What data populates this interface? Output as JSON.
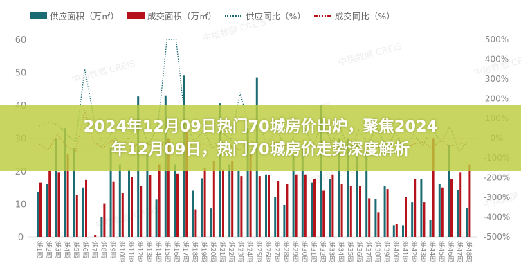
{
  "banner": {
    "line1": "2024年12月09日热门70城房价出炉，聚焦2024",
    "line2": "年12月09日，热门70城房价走势深度解析"
  },
  "watermark": "中指数据 CREIS",
  "colors": {
    "supply": "#1b6b73",
    "deal": "#b5121b",
    "supply_yoy": "#1b6b73",
    "deal_yoy": "#b5121b",
    "banner": "#bccc3e"
  },
  "chart_data": {
    "type": "bar",
    "title": "",
    "legend_position": "top",
    "categories": [
      "第1周",
      "第2周",
      "第3周",
      "第4周",
      "第5周",
      "第6周",
      "第7周",
      "第8周",
      "第9周",
      "第10周",
      "第11周",
      "第12周",
      "第13周",
      "第14周",
      "第15周",
      "第16周",
      "第17周",
      "第18周",
      "第19周",
      "第20周",
      "第21周",
      "第22周",
      "第23周",
      "第24周",
      "第25周",
      "第26周",
      "第27周",
      "第28周",
      "第29周",
      "第30周",
      "第31周",
      "第32周",
      "第33周",
      "第34周",
      "第35周",
      "第36周",
      "第37周",
      "第38周",
      "第39周",
      "第40周",
      "第41周",
      "第42周",
      "第43周",
      "第44周",
      "第45周",
      "第46周",
      "第47周",
      "第48周"
    ],
    "y_left": {
      "ylim": [
        0,
        60
      ],
      "ticks": [
        "0",
        "10",
        "20",
        "30",
        "40",
        "50",
        "60"
      ]
    },
    "y_right": {
      "ylim": [
        -500,
        500
      ],
      "ticks": [
        "-500%",
        "-400%",
        "-300%",
        "-200%",
        "-100%",
        "0%",
        "100%",
        "200%",
        "300%",
        "400%",
        "500%"
      ]
    },
    "series": [
      {
        "name": "供应面积（万㎡）",
        "type": "bar",
        "axis": "left",
        "values": [
          13.7,
          16,
          30,
          33,
          27,
          15,
          0,
          6,
          27,
          22,
          20.5,
          42.7,
          25,
          11.3,
          43,
          22,
          49,
          14,
          17.8,
          8.6,
          40.6,
          22,
          20,
          33,
          48.5,
          19,
          12,
          9.7,
          25,
          27,
          16.5,
          40,
          17.5,
          30,
          30,
          28,
          26,
          11.5,
          15.5,
          3.5,
          3.5,
          10.5,
          17.5,
          5.2,
          16,
          28,
          14.3,
          8.7
        ]
      },
      {
        "name": "成交面积（万㎡）",
        "type": "bar",
        "axis": "left",
        "values": [
          16.5,
          20,
          19.5,
          25,
          12.8,
          17.3,
          0.6,
          10.2,
          16.7,
          13.3,
          18.2,
          15.4,
          18.8,
          22,
          30,
          19.2,
          33,
          8.3,
          21,
          23,
          20.5,
          23,
          18.5,
          25,
          18.5,
          18.8,
          17,
          16,
          19,
          19,
          17.5,
          14,
          19,
          16,
          15.5,
          15.5,
          11.7,
          7.5,
          14.5,
          4,
          12,
          17.5,
          10.5,
          30,
          15,
          17.5,
          19.5,
          22
        ]
      },
      {
        "name": "供应同比（%）",
        "type": "line",
        "axis": "right",
        "values": [
          60,
          80,
          70,
          20,
          -20,
          350,
          100,
          -40,
          30,
          -60,
          20,
          80,
          -30,
          60,
          500,
          500,
          80,
          -20,
          40,
          -50,
          30,
          -10,
          230,
          60,
          70,
          -30,
          50,
          -60,
          20,
          60,
          -40,
          90,
          -20,
          50,
          -70,
          40,
          -30,
          60,
          -50,
          30,
          -60,
          20,
          -40,
          50,
          -20,
          60,
          -70,
          -10
        ]
      },
      {
        "name": "成交同比（%）",
        "type": "line",
        "axis": "right",
        "values": [
          -30,
          -60,
          20,
          -40,
          -70,
          140,
          -20,
          -50,
          -10,
          -40,
          -60,
          -20,
          -30,
          -50,
          -10,
          -60,
          -20,
          -40,
          -30,
          -50,
          -20,
          -40,
          -60,
          -10,
          -30,
          -50,
          -20,
          -40,
          -30,
          -10,
          -50,
          -30,
          -20,
          -60,
          -10,
          -40,
          -30,
          -50,
          -20,
          -40,
          -60,
          -30,
          -20,
          -50,
          -10,
          -40,
          -30,
          -20
        ]
      }
    ]
  }
}
